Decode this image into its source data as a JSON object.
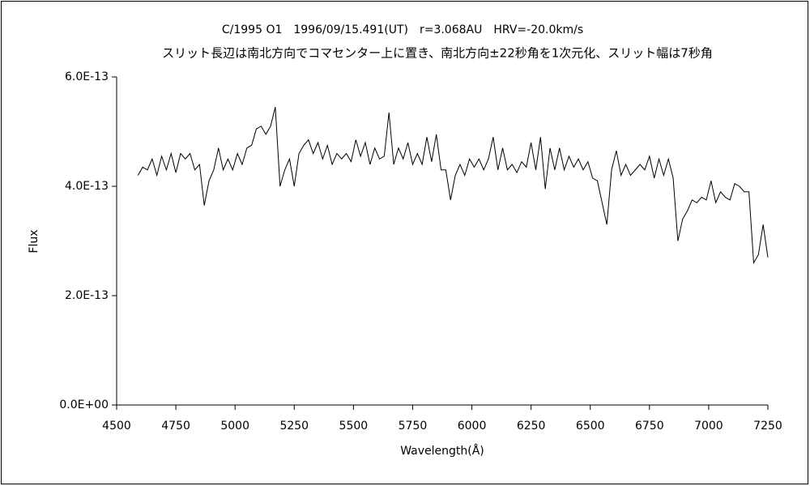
{
  "chart_data": {
    "type": "line",
    "title": "C/1995 O1　1996/09/15.491(UT)　r=3.068AU　HRV=-20.0km/s",
    "subtitle": "スリット長辺は南北方向でコマセンター上に置き、南北方向±22秒角を1次元化、スリット幅は7秒角",
    "x_label": "Wavelength(Å)",
    "y_label": "Flux",
    "xlim": [
      4500,
      7250
    ],
    "xticks": [
      4500,
      4750,
      5000,
      5250,
      5500,
      5750,
      6000,
      6250,
      6500,
      6750,
      7000,
      7250
    ],
    "ylim": [
      0,
      6e-13
    ],
    "yticks": [
      {
        "value": 0,
        "label": "0.0E+00"
      },
      {
        "value": 2e-13,
        "label": "2.0E-13"
      },
      {
        "value": 4e-13,
        "label": "4.0E-13"
      },
      {
        "value": 6e-13,
        "label": "6.0E-13"
      }
    ],
    "grid": false,
    "x": [
      4590,
      4610,
      4630,
      4650,
      4670,
      4690,
      4710,
      4730,
      4750,
      4770,
      4790,
      4810,
      4830,
      4850,
      4870,
      4890,
      4910,
      4930,
      4950,
      4970,
      4990,
      5010,
      5030,
      5050,
      5070,
      5090,
      5110,
      5130,
      5150,
      5170,
      5190,
      5210,
      5230,
      5250,
      5270,
      5290,
      5310,
      5330,
      5350,
      5370,
      5390,
      5410,
      5430,
      5450,
      5470,
      5490,
      5510,
      5530,
      5550,
      5570,
      5590,
      5610,
      5630,
      5650,
      5670,
      5690,
      5710,
      5730,
      5750,
      5770,
      5790,
      5810,
      5830,
      5850,
      5870,
      5890,
      5910,
      5930,
      5950,
      5970,
      5990,
      6010,
      6030,
      6050,
      6070,
      6090,
      6110,
      6130,
      6150,
      6170,
      6190,
      6210,
      6230,
      6250,
      6270,
      6290,
      6310,
      6330,
      6350,
      6370,
      6390,
      6410,
      6430,
      6450,
      6470,
      6490,
      6510,
      6530,
      6550,
      6570,
      6590,
      6610,
      6630,
      6650,
      6670,
      6690,
      6710,
      6730,
      6750,
      6770,
      6790,
      6810,
      6830,
      6850,
      6870,
      6890,
      6910,
      6930,
      6950,
      6970,
      6990,
      7010,
      7030,
      7050,
      7070,
      7090,
      7110,
      7130,
      7150,
      7170,
      7190,
      7210,
      7230,
      7250
    ],
    "series": [
      {
        "name": "Flux",
        "color": "#000000",
        "values": [
          4.2e-13,
          4.35e-13,
          4.3e-13,
          4.5e-13,
          4.2e-13,
          4.55e-13,
          4.3e-13,
          4.6e-13,
          4.25e-13,
          4.6e-13,
          4.5e-13,
          4.6e-13,
          4.3e-13,
          4.4e-13,
          3.65e-13,
          4.1e-13,
          4.3e-13,
          4.7e-13,
          4.3e-13,
          4.5e-13,
          4.3e-13,
          4.6e-13,
          4.4e-13,
          4.7e-13,
          4.75e-13,
          5.05e-13,
          5.1e-13,
          4.95e-13,
          5.1e-13,
          5.45e-13,
          4e-13,
          4.3e-13,
          4.5e-13,
          4e-13,
          4.6e-13,
          4.75e-13,
          4.85e-13,
          4.6e-13,
          4.8e-13,
          4.5e-13,
          4.75e-13,
          4.4e-13,
          4.6e-13,
          4.5e-13,
          4.6e-13,
          4.45e-13,
          4.85e-13,
          4.55e-13,
          4.8e-13,
          4.4e-13,
          4.7e-13,
          4.5e-13,
          4.55e-13,
          5.35e-13,
          4.4e-13,
          4.7e-13,
          4.5e-13,
          4.8e-13,
          4.4e-13,
          4.6e-13,
          4.4e-13,
          4.9e-13,
          4.45e-13,
          4.95e-13,
          4.3e-13,
          4.3e-13,
          3.75e-13,
          4.2e-13,
          4.4e-13,
          4.2e-13,
          4.5e-13,
          4.35e-13,
          4.5e-13,
          4.3e-13,
          4.5e-13,
          4.9e-13,
          4.3e-13,
          4.7e-13,
          4.3e-13,
          4.4e-13,
          4.25e-13,
          4.45e-13,
          4.35e-13,
          4.8e-13,
          4.3e-13,
          4.9e-13,
          3.95e-13,
          4.7e-13,
          4.3e-13,
          4.7e-13,
          4.3e-13,
          4.55e-13,
          4.35e-13,
          4.5e-13,
          4.3e-13,
          4.45e-13,
          4.15e-13,
          4.1e-13,
          3.7e-13,
          3.3e-13,
          4.3e-13,
          4.65e-13,
          4.2e-13,
          4.4e-13,
          4.2e-13,
          4.3e-13,
          4.4e-13,
          4.3e-13,
          4.55e-13,
          4.15e-13,
          4.5e-13,
          4.2e-13,
          4.5e-13,
          4.15e-13,
          3e-13,
          3.4e-13,
          3.55e-13,
          3.75e-13,
          3.7e-13,
          3.8e-13,
          3.75e-13,
          4.1e-13,
          3.7e-13,
          3.9e-13,
          3.8e-13,
          3.75e-13,
          4.05e-13,
          4e-13,
          3.9e-13,
          3.9e-13,
          2.6e-13,
          2.75e-13,
          3.3e-13,
          2.7e-13
        ]
      }
    ]
  }
}
